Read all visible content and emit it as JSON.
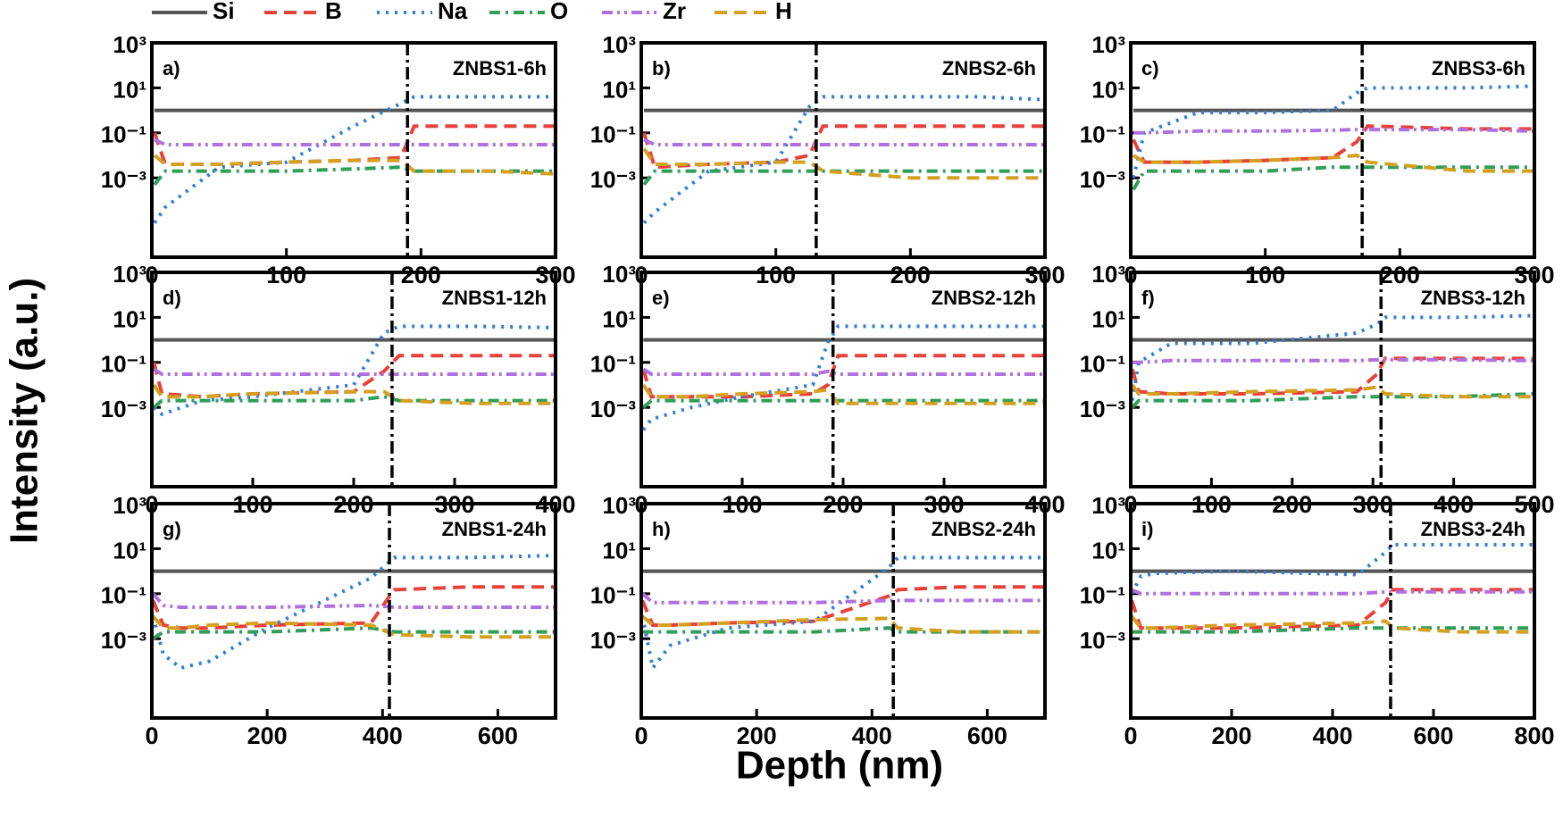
{
  "legend": [
    {
      "name": "Si",
      "color": "#555555",
      "dash": "solid"
    },
    {
      "name": "B",
      "color": "#e8413a",
      "dash": "dash"
    },
    {
      "name": "Na",
      "color": "#2f7ed8",
      "dash": "dot"
    },
    {
      "name": "O",
      "color": "#2e9e5a",
      "dash": "dash-dot"
    },
    {
      "name": "Zr",
      "color": "#b070e0",
      "dash": "dash-dot-dot"
    },
    {
      "name": "H",
      "color": "#d4a020",
      "dash": "dash"
    }
  ],
  "ylabel": "Intensity (a.u.)",
  "xlabel": "Depth (nm)",
  "chart_data": [
    {
      "type": "line",
      "title": "a)",
      "subtitle": "ZNBS1-6h",
      "log_y": true,
      "xlim": [
        0,
        300
      ],
      "xticks": [
        0,
        100,
        200,
        300
      ],
      "ylim": [
        3e-07,
        1000
      ],
      "yticks": [
        {
          "value": 1000,
          "label": "10³"
        },
        {
          "value": 10,
          "label": "10¹"
        },
        {
          "value": 0.1,
          "label": "10⁻¹"
        },
        {
          "value": 0.001,
          "label": "10⁻³"
        }
      ],
      "interface": 190,
      "x": [
        2,
        10,
        50,
        100,
        150,
        185,
        195,
        250,
        300
      ],
      "series": [
        {
          "values": [
            1,
            1,
            1,
            1,
            1,
            1,
            1,
            1,
            1
          ]
        },
        {
          "values": [
            0.1,
            0.004,
            0.004,
            0.005,
            0.006,
            0.008,
            0.2,
            0.2,
            0.2
          ]
        },
        {
          "values": [
            1e-05,
            5e-05,
            0.003,
            0.005,
            0.2,
            2,
            4,
            4,
            4
          ]
        },
        {
          "values": [
            0.0005,
            0.002,
            0.002,
            0.002,
            0.0025,
            0.003,
            0.002,
            0.002,
            0.002
          ]
        },
        {
          "values": [
            0.05,
            0.03,
            0.03,
            0.03,
            0.03,
            0.03,
            0.03,
            0.03,
            0.03
          ]
        },
        {
          "values": [
            0.01,
            0.004,
            0.004,
            0.005,
            0.006,
            0.006,
            0.002,
            0.002,
            0.0015
          ]
        }
      ]
    },
    {
      "type": "line",
      "title": "b)",
      "subtitle": "ZNBS2-6h",
      "log_y": true,
      "xlim": [
        0,
        300
      ],
      "xticks": [
        0,
        100,
        200,
        300
      ],
      "ylim": [
        3e-07,
        1000
      ],
      "yticks": [
        {
          "value": 1000,
          "label": "10³"
        },
        {
          "value": 10,
          "label": "10¹"
        },
        {
          "value": 0.1,
          "label": "10⁻¹"
        },
        {
          "value": 0.001,
          "label": "10⁻³"
        }
      ],
      "interface": 130,
      "x": [
        2,
        10,
        50,
        100,
        125,
        135,
        200,
        250,
        300
      ],
      "series": [
        {
          "values": [
            1,
            1,
            1,
            1,
            1,
            1,
            1,
            1,
            1
          ]
        },
        {
          "values": [
            0.1,
            0.003,
            0.004,
            0.005,
            0.01,
            0.2,
            0.2,
            0.2,
            0.2
          ]
        },
        {
          "values": [
            1e-05,
            3e-05,
            0.002,
            0.005,
            1.5,
            4,
            4,
            4,
            3
          ]
        },
        {
          "values": [
            0.0005,
            0.002,
            0.002,
            0.002,
            0.002,
            0.002,
            0.002,
            0.002,
            0.002
          ]
        },
        {
          "values": [
            0.05,
            0.03,
            0.03,
            0.03,
            0.03,
            0.03,
            0.03,
            0.03,
            0.03
          ]
        },
        {
          "values": [
            0.02,
            0.004,
            0.004,
            0.005,
            0.005,
            0.002,
            0.001,
            0.001,
            0.001
          ]
        }
      ]
    },
    {
      "type": "line",
      "title": "c)",
      "subtitle": "ZNBS3-6h",
      "log_y": true,
      "xlim": [
        0,
        300
      ],
      "xticks": [
        0,
        100,
        200,
        300
      ],
      "ylim": [
        3e-07,
        1000
      ],
      "yticks": [
        {
          "value": 1000,
          "label": "10³"
        },
        {
          "value": 10,
          "label": "10¹"
        },
        {
          "value": 0.1,
          "label": "10⁻¹"
        },
        {
          "value": 0.001,
          "label": "10⁻³"
        }
      ],
      "interface": 172,
      "x": [
        2,
        10,
        50,
        100,
        150,
        168,
        176,
        250,
        300
      ],
      "series": [
        {
          "values": [
            1,
            1,
            1,
            1,
            1,
            1,
            1,
            1,
            1
          ]
        },
        {
          "values": [
            0.05,
            0.005,
            0.005,
            0.006,
            0.008,
            0.04,
            0.2,
            0.15,
            0.15
          ]
        },
        {
          "values": [
            0.001,
            0.1,
            0.8,
            0.8,
            1,
            6,
            10,
            10,
            12
          ]
        },
        {
          "values": [
            0.0003,
            0.002,
            0.002,
            0.002,
            0.003,
            0.003,
            0.003,
            0.003,
            0.003
          ]
        },
        {
          "values": [
            0.1,
            0.1,
            0.12,
            0.12,
            0.13,
            0.14,
            0.14,
            0.14,
            0.12
          ]
        },
        {
          "values": [
            0.01,
            0.005,
            0.005,
            0.006,
            0.008,
            0.01,
            0.005,
            0.002,
            0.002
          ]
        }
      ]
    },
    {
      "type": "line",
      "title": "d)",
      "subtitle": "ZNBS1-12h",
      "log_y": true,
      "xlim": [
        0,
        400
      ],
      "xticks": [
        0,
        100,
        200,
        300,
        400
      ],
      "ylim": [
        3e-07,
        1000
      ],
      "yticks": [
        {
          "value": 1000,
          "label": "10³"
        },
        {
          "value": 10,
          "label": "10¹"
        },
        {
          "value": 0.1,
          "label": "10⁻¹"
        },
        {
          "value": 0.001,
          "label": "10⁻³"
        }
      ],
      "interface": 238,
      "x": [
        2,
        10,
        50,
        100,
        200,
        230,
        245,
        320,
        400
      ],
      "series": [
        {
          "values": [
            1,
            1,
            1,
            1,
            1,
            1,
            1,
            1,
            1
          ]
        },
        {
          "values": [
            0.1,
            0.004,
            0.003,
            0.004,
            0.005,
            0.04,
            0.2,
            0.2,
            0.2
          ]
        },
        {
          "values": [
            0.001,
            0.0005,
            0.002,
            0.003,
            0.01,
            2,
            4,
            4,
            3.5
          ]
        },
        {
          "values": [
            0.001,
            0.002,
            0.002,
            0.002,
            0.002,
            0.003,
            0.002,
            0.002,
            0.002
          ]
        },
        {
          "values": [
            0.05,
            0.03,
            0.03,
            0.03,
            0.03,
            0.03,
            0.03,
            0.03,
            0.03
          ]
        },
        {
          "values": [
            0.01,
            0.003,
            0.003,
            0.004,
            0.005,
            0.005,
            0.002,
            0.0015,
            0.0015
          ]
        }
      ]
    },
    {
      "type": "line",
      "title": "e)",
      "subtitle": "ZNBS2-12h",
      "log_y": true,
      "xlim": [
        0,
        400
      ],
      "xticks": [
        0,
        100,
        200,
        300,
        400
      ],
      "ylim": [
        3e-07,
        1000
      ],
      "yticks": [
        {
          "value": 1000,
          "label": "10³"
        },
        {
          "value": 10,
          "label": "10¹"
        },
        {
          "value": 0.1,
          "label": "10⁻¹"
        },
        {
          "value": 0.001,
          "label": "10⁻³"
        }
      ],
      "interface": 190,
      "x": [
        2,
        10,
        50,
        100,
        170,
        185,
        195,
        300,
        400
      ],
      "series": [
        {
          "values": [
            1,
            1,
            1,
            1,
            1,
            1,
            1,
            1,
            1
          ]
        },
        {
          "values": [
            0.05,
            0.003,
            0.003,
            0.003,
            0.004,
            0.01,
            0.2,
            0.2,
            0.2
          ]
        },
        {
          "values": [
            0.0001,
            0.0003,
            0.001,
            0.003,
            0.01,
            0.8,
            4,
            4,
            4
          ]
        },
        {
          "values": [
            0.001,
            0.002,
            0.002,
            0.002,
            0.002,
            0.002,
            0.002,
            0.002,
            0.002
          ]
        },
        {
          "values": [
            0.05,
            0.03,
            0.03,
            0.03,
            0.03,
            0.04,
            0.03,
            0.03,
            0.03
          ]
        },
        {
          "values": [
            0.01,
            0.003,
            0.003,
            0.004,
            0.005,
            0.006,
            0.0015,
            0.0015,
            0.0015
          ]
        }
      ]
    },
    {
      "type": "line",
      "title": "f)",
      "subtitle": "ZNBS3-12h",
      "log_y": true,
      "xlim": [
        0,
        500
      ],
      "xticks": [
        0,
        100,
        200,
        300,
        400,
        500
      ],
      "ylim": [
        3e-07,
        1000
      ],
      "yticks": [
        {
          "value": 1000,
          "label": "10³"
        },
        {
          "value": 10,
          "label": "10¹"
        },
        {
          "value": 0.1,
          "label": "10⁻¹"
        },
        {
          "value": 0.001,
          "label": "10⁻³"
        }
      ],
      "interface": 310,
      "x": [
        2,
        10,
        50,
        150,
        280,
        305,
        315,
        400,
        500
      ],
      "series": [
        {
          "values": [
            1,
            1,
            1,
            1,
            1,
            1,
            1,
            1,
            1
          ]
        },
        {
          "values": [
            0.05,
            0.005,
            0.004,
            0.004,
            0.005,
            0.03,
            0.15,
            0.15,
            0.15
          ]
        },
        {
          "values": [
            0.002,
            0.1,
            0.7,
            0.7,
            2,
            5,
            10,
            10,
            12
          ]
        },
        {
          "values": [
            0.001,
            0.002,
            0.002,
            0.002,
            0.003,
            0.003,
            0.003,
            0.003,
            0.004
          ]
        },
        {
          "values": [
            0.1,
            0.1,
            0.12,
            0.12,
            0.12,
            0.13,
            0.13,
            0.13,
            0.12
          ]
        },
        {
          "values": [
            0.01,
            0.004,
            0.004,
            0.005,
            0.006,
            0.008,
            0.004,
            0.003,
            0.003
          ]
        }
      ]
    },
    {
      "type": "line",
      "title": "g)",
      "subtitle": "ZNBS1-24h",
      "log_y": true,
      "xlim": [
        0,
        700
      ],
      "xticks": [
        0,
        200,
        400,
        600
      ],
      "ylim": [
        3e-07,
        1000
      ],
      "yticks": [
        {
          "value": 1000,
          "label": "10³"
        },
        {
          "value": 10,
          "label": "10¹"
        },
        {
          "value": 0.1,
          "label": "10⁻¹"
        },
        {
          "value": 0.001,
          "label": "10⁻³"
        }
      ],
      "interface": 412,
      "x": [
        2,
        20,
        50,
        100,
        200,
        380,
        420,
        550,
        700
      ],
      "series": [
        {
          "values": [
            1,
            1,
            1,
            1,
            1,
            1,
            1,
            1,
            1
          ]
        },
        {
          "values": [
            0.05,
            0.004,
            0.003,
            0.003,
            0.004,
            0.005,
            0.15,
            0.2,
            0.2
          ]
        },
        {
          "values": [
            0.01,
            0.0002,
            5e-05,
            0.0001,
            0.003,
            0.5,
            4,
            4,
            5
          ]
        },
        {
          "values": [
            0.001,
            0.002,
            0.002,
            0.002,
            0.002,
            0.003,
            0.002,
            0.002,
            0.002
          ]
        },
        {
          "values": [
            0.1,
            0.03,
            0.025,
            0.025,
            0.025,
            0.03,
            0.025,
            0.025,
            0.025
          ]
        },
        {
          "values": [
            0.01,
            0.003,
            0.003,
            0.004,
            0.005,
            0.004,
            0.0015,
            0.0012,
            0.0012
          ]
        }
      ]
    },
    {
      "type": "line",
      "title": "h)",
      "subtitle": "ZNBS2-24h",
      "log_y": true,
      "xlim": [
        0,
        700
      ],
      "xticks": [
        0,
        200,
        400,
        600
      ],
      "ylim": [
        3e-07,
        1000
      ],
      "yticks": [
        {
          "value": 1000,
          "label": "10³"
        },
        {
          "value": 10,
          "label": "10¹"
        },
        {
          "value": 0.1,
          "label": "10⁻¹"
        },
        {
          "value": 0.001,
          "label": "10⁻³"
        }
      ],
      "interface": 437,
      "x": [
        2,
        20,
        50,
        150,
        300,
        430,
        445,
        550,
        700
      ],
      "series": [
        {
          "values": [
            1,
            1,
            1,
            1,
            1,
            1,
            1,
            1,
            1
          ]
        },
        {
          "values": [
            0.05,
            0.004,
            0.004,
            0.005,
            0.006,
            0.08,
            0.15,
            0.2,
            0.2
          ]
        },
        {
          "values": [
            0.01,
            5e-05,
            0.0005,
            0.003,
            0.006,
            1.5,
            4,
            4,
            4
          ]
        },
        {
          "values": [
            0.002,
            0.002,
            0.002,
            0.002,
            0.002,
            0.003,
            0.002,
            0.002,
            0.002
          ]
        },
        {
          "values": [
            0.1,
            0.04,
            0.04,
            0.04,
            0.04,
            0.05,
            0.05,
            0.05,
            0.05
          ]
        },
        {
          "values": [
            0.01,
            0.004,
            0.004,
            0.005,
            0.007,
            0.008,
            0.003,
            0.002,
            0.002
          ]
        }
      ]
    },
    {
      "type": "line",
      "title": "i)",
      "subtitle": "ZNBS3-24h",
      "log_y": true,
      "xlim": [
        0,
        800
      ],
      "xticks": [
        0,
        200,
        400,
        600,
        800
      ],
      "ylim": [
        3e-07,
        1000
      ],
      "yticks": [
        {
          "value": 1000,
          "label": "10³"
        },
        {
          "value": 10,
          "label": "10¹"
        },
        {
          "value": 0.1,
          "label": "10⁻¹"
        },
        {
          "value": 0.001,
          "label": "10⁻³"
        }
      ],
      "interface": 515,
      "x": [
        2,
        20,
        50,
        200,
        450,
        505,
        520,
        650,
        800
      ],
      "series": [
        {
          "values": [
            1,
            1,
            1,
            1,
            1,
            1,
            1,
            1,
            1
          ]
        },
        {
          "values": [
            0.05,
            0.003,
            0.003,
            0.003,
            0.004,
            0.04,
            0.15,
            0.15,
            0.15
          ]
        },
        {
          "values": [
            0.1,
            0.6,
            0.8,
            1,
            0.7,
            7,
            15,
            15,
            15
          ]
        },
        {
          "values": [
            0.002,
            0.002,
            0.002,
            0.002,
            0.003,
            0.003,
            0.003,
            0.003,
            0.003
          ]
        },
        {
          "values": [
            0.15,
            0.1,
            0.1,
            0.1,
            0.1,
            0.12,
            0.12,
            0.12,
            0.12
          ]
        },
        {
          "values": [
            0.01,
            0.003,
            0.003,
            0.004,
            0.005,
            0.006,
            0.003,
            0.002,
            0.002
          ]
        }
      ]
    }
  ]
}
